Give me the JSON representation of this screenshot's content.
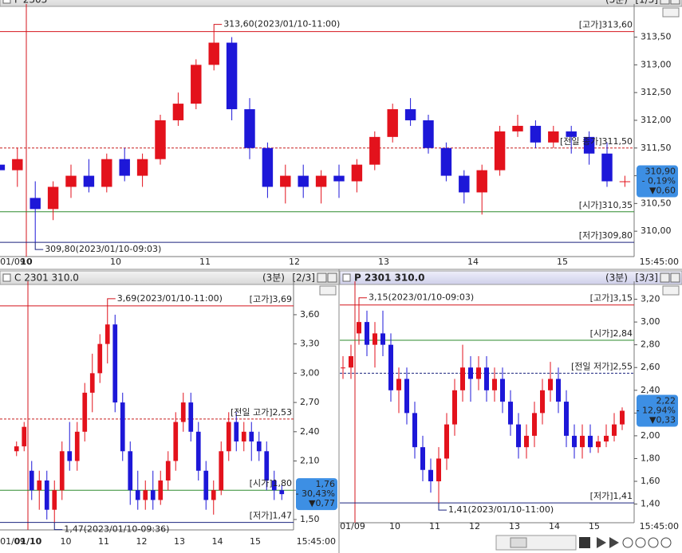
{
  "chart_data": [
    {
      "type": "candlestick",
      "title": "F 2303",
      "interval": "(3분)",
      "page": "[1/3]",
      "up_color": "#e3121c",
      "down_color": "#1d17d8",
      "ylim": [
        309.6,
        314.04
      ],
      "yticks": [
        {
          "value": 310.0,
          "label": "310,00"
        },
        {
          "value": 310.5,
          "label": "310,50"
        },
        {
          "value": 311.0,
          "label": "311,00"
        },
        {
          "value": 311.5,
          "label": "311,50"
        },
        {
          "value": 312.0,
          "label": "312,00"
        },
        {
          "value": 312.5,
          "label": "312,50"
        },
        {
          "value": 313.0,
          "label": "313,00"
        },
        {
          "value": 313.5,
          "label": "313,50"
        }
      ],
      "categories": [
        "01/09",
        null,
        "10",
        null,
        null,
        null,
        null,
        "10",
        null,
        null,
        null,
        null,
        "11",
        null,
        null,
        null,
        null,
        "12",
        null,
        null,
        null,
        null,
        "13",
        null,
        null,
        null,
        null,
        "14",
        null,
        null,
        null,
        null,
        "15",
        null,
        null,
        null
      ],
      "session_start_index": 2,
      "time_label": "15:45:00",
      "ohlc": [
        [
          311.2,
          311.3,
          311.0,
          311.1
        ],
        [
          311.1,
          311.5,
          310.8,
          311.3
        ],
        [
          310.6,
          310.9,
          309.8,
          310.4
        ],
        [
          310.4,
          310.9,
          310.2,
          310.8
        ],
        [
          310.8,
          311.2,
          310.6,
          311.0
        ],
        [
          311.0,
          311.3,
          310.7,
          310.8
        ],
        [
          310.8,
          311.4,
          310.7,
          311.3
        ],
        [
          311.3,
          311.5,
          310.9,
          311.0
        ],
        [
          311.0,
          311.4,
          310.8,
          311.3
        ],
        [
          311.3,
          312.1,
          311.2,
          312.0
        ],
        [
          312.0,
          312.5,
          311.9,
          312.3
        ],
        [
          312.3,
          313.1,
          312.2,
          313.0
        ],
        [
          313.0,
          313.6,
          312.9,
          313.4
        ],
        [
          313.4,
          313.5,
          312.0,
          312.2
        ],
        [
          312.2,
          312.4,
          311.3,
          311.5
        ],
        [
          311.5,
          311.6,
          310.6,
          310.8
        ],
        [
          310.8,
          311.2,
          310.5,
          311.0
        ],
        [
          311.0,
          311.2,
          310.6,
          310.8
        ],
        [
          310.8,
          311.1,
          310.5,
          311.0
        ],
        [
          311.0,
          311.2,
          310.6,
          310.9
        ],
        [
          310.9,
          311.3,
          310.7,
          311.2
        ],
        [
          311.2,
          311.8,
          311.1,
          311.7
        ],
        [
          311.7,
          312.3,
          311.6,
          312.2
        ],
        [
          312.2,
          312.4,
          311.9,
          312.0
        ],
        [
          312.0,
          312.1,
          311.4,
          311.5
        ],
        [
          311.5,
          311.6,
          310.9,
          311.0
        ],
        [
          311.0,
          311.1,
          310.5,
          310.7
        ],
        [
          310.7,
          311.2,
          310.3,
          311.1
        ],
        [
          311.1,
          311.9,
          311.0,
          311.8
        ],
        [
          311.8,
          312.1,
          311.7,
          311.9
        ],
        [
          311.9,
          312.0,
          311.5,
          311.6
        ],
        [
          311.6,
          311.9,
          311.5,
          311.8
        ],
        [
          311.8,
          311.9,
          311.4,
          311.7
        ],
        [
          311.7,
          311.8,
          311.2,
          311.4
        ],
        [
          311.4,
          311.6,
          310.8,
          310.9
        ],
        [
          310.9,
          311.0,
          310.8,
          310.9
        ]
      ],
      "ref_lines": [
        {
          "label": "[고가]313,60",
          "value": 313.6,
          "color": "#d4141c",
          "dashed": false
        },
        {
          "label": "[전일 종가]311,50",
          "value": 311.5,
          "color": "#c81e1e",
          "dashed": true
        },
        {
          "label": "[시가]310,35",
          "value": 310.35,
          "color": "#2e8b2e",
          "dashed": false
        },
        {
          "label": "[저가]309,80",
          "value": 309.8,
          "color": "#1a237e",
          "dashed": false
        }
      ],
      "annotations": [
        {
          "text": "313,60(2023/01/10-11:00)",
          "value": 313.6,
          "index": 12
        },
        {
          "text": "309,80(2023/01/10-09:03)",
          "value": 309.8,
          "index": 2
        }
      ],
      "last": {
        "value": 310.9,
        "lines": [
          "310,90",
          "- 0,19%",
          "▼0,60"
        ]
      }
    },
    {
      "type": "candlestick",
      "title": "C 2301 310.0",
      "interval": "(3분)",
      "page": "[2/3]",
      "up_color": "#e3121c",
      "down_color": "#1d17d8",
      "ylim": [
        1.426,
        3.91
      ],
      "yticks": [
        {
          "value": 1.5,
          "label": "1,50"
        },
        {
          "value": 1.8,
          "label": "1,80"
        },
        {
          "value": 2.1,
          "label": "2,10"
        },
        {
          "value": 2.4,
          "label": "2,40"
        },
        {
          "value": 2.7,
          "label": "2,70"
        },
        {
          "value": 3.0,
          "label": "3,00"
        },
        {
          "value": 3.3,
          "label": "3,30"
        },
        {
          "value": 3.6,
          "label": "3,60"
        }
      ],
      "categories": [
        "01/09",
        null,
        "01/10",
        null,
        null,
        null,
        null,
        "10",
        null,
        null,
        null,
        null,
        "11",
        null,
        null,
        null,
        null,
        "12",
        null,
        null,
        null,
        null,
        "13",
        null,
        null,
        null,
        null,
        "14",
        null,
        null,
        null,
        null,
        "15",
        null,
        null,
        null
      ],
      "session_start_index": 2,
      "time_label": "15:45:00",
      "ohlc": [
        [
          2.2,
          2.3,
          2.15,
          2.25
        ],
        [
          2.25,
          2.5,
          2.2,
          2.45
        ],
        [
          2.0,
          2.1,
          1.7,
          1.8
        ],
        [
          1.8,
          2.0,
          1.6,
          1.9
        ],
        [
          1.9,
          2.0,
          1.5,
          1.6
        ],
        [
          1.6,
          1.9,
          1.47,
          1.8
        ],
        [
          1.8,
          2.3,
          1.7,
          2.2
        ],
        [
          2.2,
          2.5,
          2.0,
          2.1
        ],
        [
          2.1,
          2.5,
          2.0,
          2.4
        ],
        [
          2.4,
          2.9,
          2.3,
          2.8
        ],
        [
          2.8,
          3.2,
          2.6,
          3.0
        ],
        [
          3.0,
          3.4,
          2.9,
          3.3
        ],
        [
          3.3,
          3.69,
          3.1,
          3.5
        ],
        [
          3.5,
          3.6,
          2.6,
          2.7
        ],
        [
          2.7,
          2.8,
          2.1,
          2.2
        ],
        [
          2.2,
          2.3,
          1.65,
          1.8
        ],
        [
          1.8,
          2.0,
          1.6,
          1.7
        ],
        [
          1.7,
          1.9,
          1.6,
          1.8
        ],
        [
          1.8,
          2.0,
          1.6,
          1.7
        ],
        [
          1.7,
          2.0,
          1.65,
          1.9
        ],
        [
          1.9,
          2.2,
          1.8,
          2.1
        ],
        [
          2.1,
          2.6,
          2.0,
          2.5
        ],
        [
          2.5,
          2.8,
          2.4,
          2.7
        ],
        [
          2.7,
          2.8,
          2.3,
          2.4
        ],
        [
          2.4,
          2.5,
          1.9,
          2.0
        ],
        [
          2.0,
          2.1,
          1.6,
          1.7
        ],
        [
          1.7,
          1.9,
          1.55,
          1.8
        ],
        [
          1.8,
          2.3,
          1.75,
          2.2
        ],
        [
          2.2,
          2.6,
          2.1,
          2.5
        ],
        [
          2.5,
          2.6,
          2.2,
          2.3
        ],
        [
          2.3,
          2.5,
          2.2,
          2.4
        ],
        [
          2.4,
          2.5,
          2.1,
          2.3
        ],
        [
          2.3,
          2.4,
          2.1,
          2.2
        ],
        [
          2.2,
          2.3,
          1.8,
          1.9
        ],
        [
          1.9,
          2.0,
          1.7,
          1.8
        ],
        [
          1.8,
          1.85,
          1.7,
          1.76
        ]
      ],
      "ref_lines": [
        {
          "label": "[고가]3,69",
          "value": 3.69,
          "color": "#d4141c",
          "dashed": false
        },
        {
          "label": "[전일 고가]2,53",
          "value": 2.53,
          "color": "#c81e1e",
          "dashed": true
        },
        {
          "label": "[시가]1,80",
          "value": 1.8,
          "color": "#2e8b2e",
          "dashed": false
        },
        {
          "label": "[저가]1,47",
          "value": 1.47,
          "color": "#1a237e",
          "dashed": false
        }
      ],
      "annotations": [
        {
          "text": "3,69(2023/01/10-11:00)",
          "value": 3.69,
          "index": 12
        },
        {
          "text": "1,47(2023/01/10-09:36)",
          "value": 1.47,
          "index": 5
        }
      ],
      "last": {
        "value": 1.76,
        "lines": [
          "1,76",
          "- 30,43%",
          "▼0,77"
        ]
      }
    },
    {
      "type": "candlestick",
      "title": "P 2301 310.0",
      "interval": "(3분)",
      "page": "[3/3]",
      "up_color": "#e3121c",
      "down_color": "#1d17d8",
      "ylim": [
        1.264,
        3.33
      ],
      "yticks": [
        {
          "value": 1.4,
          "label": "1,40"
        },
        {
          "value": 1.6,
          "label": "1,60"
        },
        {
          "value": 1.8,
          "label": "1,80"
        },
        {
          "value": 2.0,
          "label": "2,00"
        },
        {
          "value": 2.2,
          "label": "2,20"
        },
        {
          "value": 2.4,
          "label": "2,40"
        },
        {
          "value": 2.6,
          "label": "2,60"
        },
        {
          "value": 2.8,
          "label": "2,80"
        },
        {
          "value": 3.0,
          "label": "3,00"
        },
        {
          "value": 3.2,
          "label": "3,20"
        }
      ],
      "categories": [
        "01/09",
        null,
        null,
        null,
        null,
        null,
        null,
        "10",
        null,
        null,
        null,
        null,
        "11",
        null,
        null,
        null,
        null,
        "12",
        null,
        null,
        null,
        null,
        "13",
        null,
        null,
        null,
        null,
        "14",
        null,
        null,
        null,
        null,
        "15",
        null,
        null,
        null
      ],
      "session_start_index": 2,
      "time_label": "15:45:00",
      "ohlc": [
        [
          2.6,
          2.7,
          2.5,
          2.6
        ],
        [
          2.6,
          2.8,
          2.5,
          2.7
        ],
        [
          2.9,
          3.15,
          2.8,
          3.0
        ],
        [
          3.0,
          3.1,
          2.7,
          2.8
        ],
        [
          2.8,
          3.0,
          2.6,
          2.9
        ],
        [
          2.9,
          3.1,
          2.7,
          2.8
        ],
        [
          2.8,
          2.9,
          2.3,
          2.4
        ],
        [
          2.4,
          2.6,
          2.2,
          2.5
        ],
        [
          2.5,
          2.6,
          2.1,
          2.2
        ],
        [
          2.2,
          2.3,
          1.8,
          1.9
        ],
        [
          1.9,
          2.0,
          1.6,
          1.7
        ],
        [
          1.7,
          1.8,
          1.5,
          1.6
        ],
        [
          1.6,
          1.9,
          1.41,
          1.8
        ],
        [
          1.8,
          2.2,
          1.7,
          2.1
        ],
        [
          2.1,
          2.5,
          2.0,
          2.4
        ],
        [
          2.4,
          2.8,
          2.3,
          2.6
        ],
        [
          2.6,
          2.7,
          2.3,
          2.5
        ],
        [
          2.5,
          2.7,
          2.4,
          2.6
        ],
        [
          2.6,
          2.7,
          2.3,
          2.4
        ],
        [
          2.4,
          2.6,
          2.3,
          2.5
        ],
        [
          2.5,
          2.6,
          2.2,
          2.3
        ],
        [
          2.3,
          2.4,
          2.0,
          2.1
        ],
        [
          2.1,
          2.2,
          1.8,
          1.9
        ],
        [
          1.9,
          2.1,
          1.8,
          2.0
        ],
        [
          2.0,
          2.3,
          1.9,
          2.2
        ],
        [
          2.2,
          2.5,
          2.1,
          2.4
        ],
        [
          2.4,
          2.65,
          2.3,
          2.5
        ],
        [
          2.5,
          2.6,
          2.2,
          2.3
        ],
        [
          2.3,
          2.4,
          1.9,
          2.0
        ],
        [
          2.0,
          2.1,
          1.8,
          1.9
        ],
        [
          1.9,
          2.1,
          1.8,
          2.0
        ],
        [
          2.0,
          2.1,
          1.85,
          1.9
        ],
        [
          1.9,
          2.0,
          1.85,
          1.95
        ],
        [
          1.95,
          2.1,
          1.9,
          2.0
        ],
        [
          2.0,
          2.2,
          1.95,
          2.1
        ],
        [
          2.1,
          2.25,
          2.05,
          2.22
        ]
      ],
      "ref_lines": [
        {
          "label": "[고가]3,15",
          "value": 3.15,
          "color": "#d4141c",
          "dashed": false
        },
        {
          "label": "[시가]2,84",
          "value": 2.84,
          "color": "#2e8b2e",
          "dashed": false
        },
        {
          "label": "[전일 저가]2,55",
          "value": 2.55,
          "color": "#1a237e",
          "dashed": true
        },
        {
          "label": "[저가]1,41",
          "value": 1.41,
          "color": "#1a237e",
          "dashed": false
        }
      ],
      "annotations": [
        {
          "text": "3,15(2023/01/10-09:03)",
          "value": 3.15,
          "index": 2
        },
        {
          "text": "1,41(2023/01/10-11:00)",
          "value": 1.41,
          "index": 12
        }
      ],
      "last": {
        "value": 2.22,
        "lines": [
          "2,22",
          "- 12,94%",
          "▼0,33"
        ]
      }
    }
  ]
}
